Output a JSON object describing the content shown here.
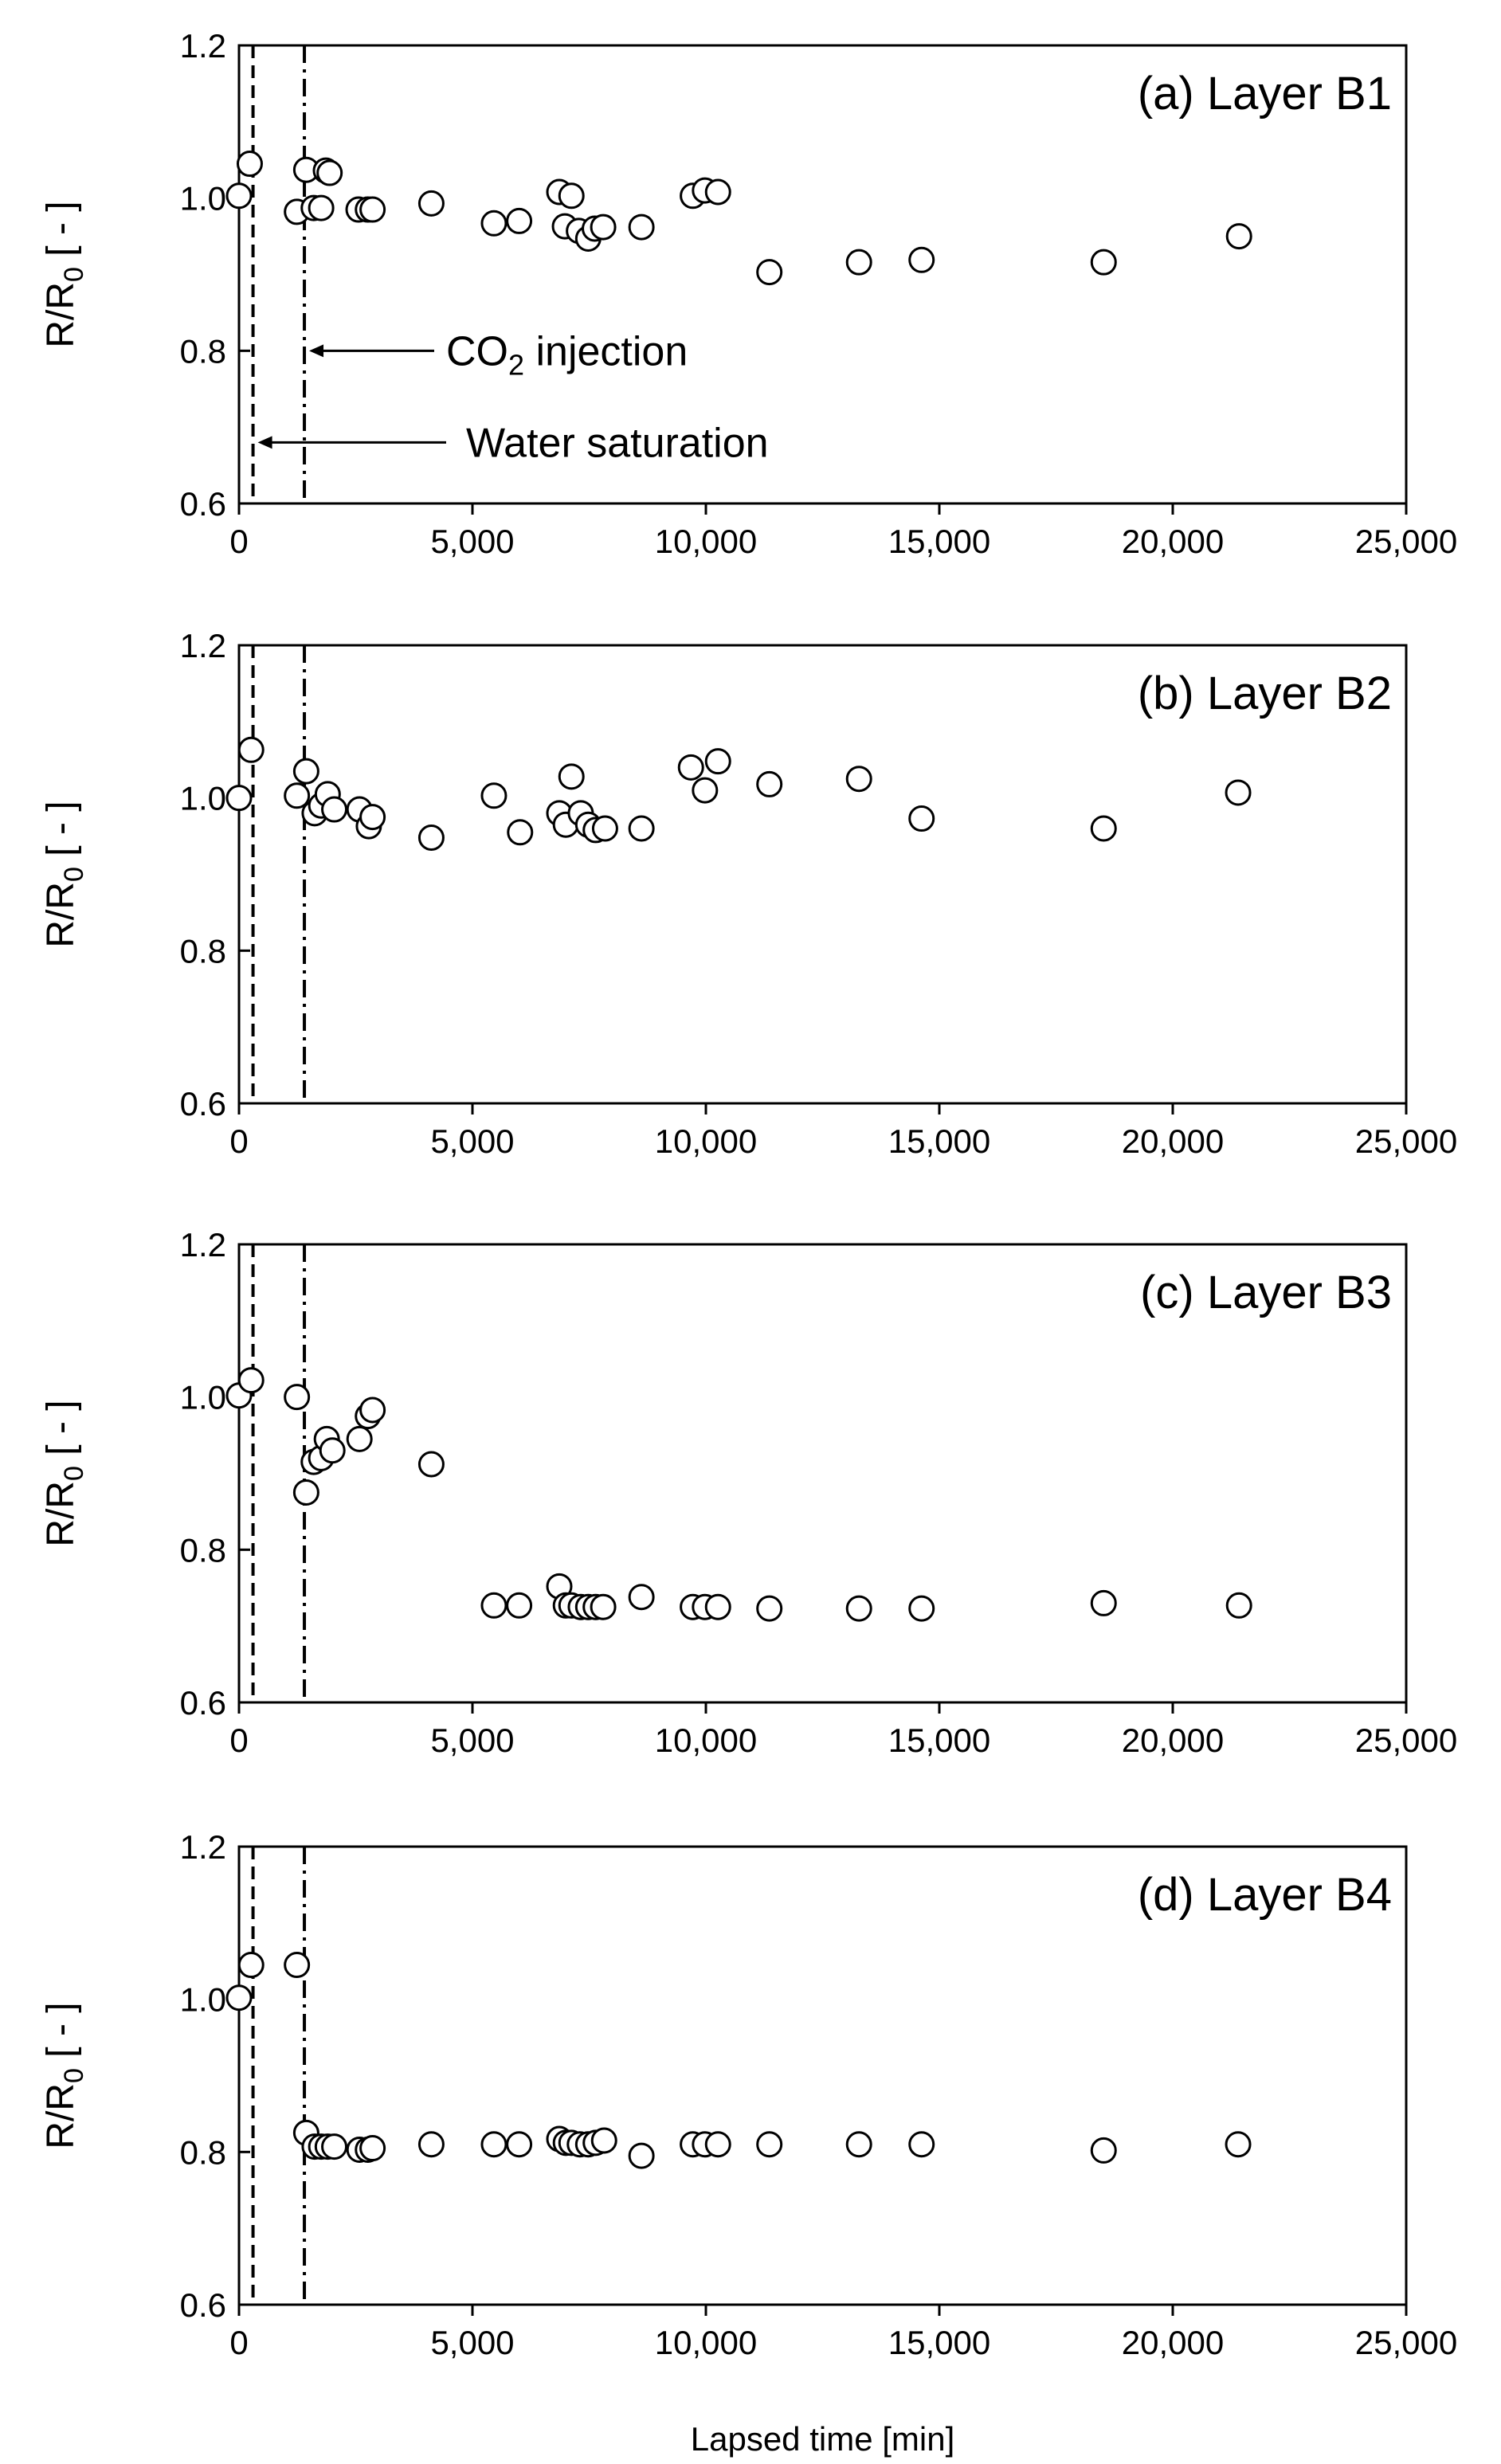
{
  "figure": {
    "xlabel": "Lapsed time [min]",
    "ylabel_main": "R/R",
    "ylabel_sub": "0",
    "ylabel_tail": " [ - ]",
    "annotations": {
      "co2_main": "CO",
      "co2_sub": "2",
      "co2_tail": " injection",
      "water": "Water saturation"
    }
  },
  "chart_data": [
    {
      "type": "scatter",
      "title": "(a) Layer B1",
      "xlabel": "",
      "ylabel": "R/R0 [ - ]",
      "xlim": [
        0,
        25000
      ],
      "ylim": [
        0.6,
        1.2
      ],
      "x_ticks": [
        "0",
        "5,000",
        "10,000",
        "15,000",
        "20,000",
        "25,000"
      ],
      "y_ticks": [
        "0.6",
        "0.8",
        "1.0",
        "1.2"
      ],
      "vlines": {
        "water_saturation": 300,
        "co2_injection": 1400
      },
      "annotations": [
        "CO2 injection",
        "Water saturation"
      ],
      "points": [
        [
          0,
          1.003
        ],
        [
          230,
          1.045
        ],
        [
          1240,
          0.982
        ],
        [
          1440,
          1.037
        ],
        [
          1600,
          0.987
        ],
        [
          1760,
          0.987
        ],
        [
          1860,
          1.036
        ],
        [
          1940,
          1.033
        ],
        [
          2560,
          0.985
        ],
        [
          2760,
          0.985
        ],
        [
          2860,
          0.985
        ],
        [
          4120,
          0.993
        ],
        [
          5460,
          0.967
        ],
        [
          6000,
          0.97
        ],
        [
          6860,
          1.008
        ],
        [
          6980,
          0.963
        ],
        [
          7120,
          1.003
        ],
        [
          7280,
          0.957
        ],
        [
          7480,
          0.947
        ],
        [
          7620,
          0.96
        ],
        [
          7800,
          0.962
        ],
        [
          8620,
          0.962
        ],
        [
          9720,
          1.003
        ],
        [
          9980,
          1.01
        ],
        [
          10260,
          1.008
        ],
        [
          11360,
          0.903
        ],
        [
          13280,
          0.916
        ],
        [
          14620,
          0.919
        ],
        [
          18520,
          0.916
        ],
        [
          21420,
          0.95
        ]
      ]
    },
    {
      "type": "scatter",
      "title": "(b) Layer B2",
      "xlabel": "",
      "ylabel": "R/R0 [ - ]",
      "xlim": [
        0,
        25000
      ],
      "ylim": [
        0.6,
        1.2
      ],
      "x_ticks": [
        "0",
        "5,000",
        "10,000",
        "15,000",
        "20,000",
        "25,000"
      ],
      "y_ticks": [
        "0.6",
        "0.8",
        "1.0",
        "1.2"
      ],
      "vlines": {
        "water_saturation": 300,
        "co2_injection": 1400
      },
      "points": [
        [
          0,
          1.0
        ],
        [
          260,
          1.063
        ],
        [
          1240,
          1.003
        ],
        [
          1440,
          1.035
        ],
        [
          1620,
          0.98
        ],
        [
          1760,
          0.99
        ],
        [
          1900,
          1.005
        ],
        [
          2040,
          0.985
        ],
        [
          2580,
          0.985
        ],
        [
          2780,
          0.963
        ],
        [
          2860,
          0.975
        ],
        [
          4120,
          0.948
        ],
        [
          5460,
          1.003
        ],
        [
          6020,
          0.955
        ],
        [
          6860,
          0.98
        ],
        [
          7000,
          0.965
        ],
        [
          7120,
          1.028
        ],
        [
          7320,
          0.98
        ],
        [
          7480,
          0.965
        ],
        [
          7640,
          0.958
        ],
        [
          7840,
          0.96
        ],
        [
          8620,
          0.96
        ],
        [
          9680,
          1.04
        ],
        [
          9980,
          1.01
        ],
        [
          10260,
          1.048
        ],
        [
          11360,
          1.018
        ],
        [
          13280,
          1.025
        ],
        [
          14620,
          0.973
        ],
        [
          18520,
          0.96
        ],
        [
          21400,
          1.007
        ]
      ]
    },
    {
      "type": "scatter",
      "title": "(c) Layer B3",
      "xlabel": "",
      "ylabel": "R/R0 [ - ]",
      "xlim": [
        0,
        25000
      ],
      "ylim": [
        0.6,
        1.2
      ],
      "x_ticks": [
        "0",
        "5,000",
        "10,000",
        "15,000",
        "20,000",
        "25,000"
      ],
      "y_ticks": [
        "0.6",
        "0.8",
        "1.0",
        "1.2"
      ],
      "vlines": {
        "water_saturation": 300,
        "co2_injection": 1400
      },
      "points": [
        [
          0,
          1.002
        ],
        [
          260,
          1.022
        ],
        [
          1240,
          1.0
        ],
        [
          1440,
          0.875
        ],
        [
          1600,
          0.915
        ],
        [
          1760,
          0.92
        ],
        [
          1880,
          0.945
        ],
        [
          2000,
          0.93
        ],
        [
          2580,
          0.945
        ],
        [
          2760,
          0.975
        ],
        [
          2860,
          0.983
        ],
        [
          4120,
          0.912
        ],
        [
          5460,
          0.727
        ],
        [
          6000,
          0.727
        ],
        [
          6860,
          0.752
        ],
        [
          7000,
          0.727
        ],
        [
          7120,
          0.727
        ],
        [
          7320,
          0.725
        ],
        [
          7480,
          0.725
        ],
        [
          7640,
          0.725
        ],
        [
          7800,
          0.725
        ],
        [
          8620,
          0.738
        ],
        [
          9720,
          0.725
        ],
        [
          9980,
          0.725
        ],
        [
          10260,
          0.725
        ],
        [
          11360,
          0.723
        ],
        [
          13280,
          0.723
        ],
        [
          14620,
          0.723
        ],
        [
          18520,
          0.73
        ],
        [
          21420,
          0.727
        ]
      ]
    },
    {
      "type": "scatter",
      "title": "(d) Layer B4",
      "xlabel": "Lapsed time [min]",
      "ylabel": "R/R0 [ - ]",
      "xlim": [
        0,
        25000
      ],
      "ylim": [
        0.6,
        1.2
      ],
      "x_ticks": [
        "0",
        "5,000",
        "10,000",
        "15,000",
        "20,000",
        "25,000"
      ],
      "y_ticks": [
        "0.6",
        "0.8",
        "1.0",
        "1.2"
      ],
      "vlines": {
        "water_saturation": 300,
        "co2_injection": 1400
      },
      "points": [
        [
          0,
          1.002
        ],
        [
          260,
          1.045
        ],
        [
          1240,
          1.045
        ],
        [
          1440,
          0.825
        ],
        [
          1620,
          0.807
        ],
        [
          1760,
          0.807
        ],
        [
          1900,
          0.807
        ],
        [
          2040,
          0.807
        ],
        [
          2580,
          0.803
        ],
        [
          2760,
          0.803
        ],
        [
          2860,
          0.805
        ],
        [
          4120,
          0.81
        ],
        [
          5460,
          0.81
        ],
        [
          6000,
          0.81
        ],
        [
          6860,
          0.817
        ],
        [
          7000,
          0.812
        ],
        [
          7120,
          0.812
        ],
        [
          7300,
          0.81
        ],
        [
          7480,
          0.81
        ],
        [
          7640,
          0.812
        ],
        [
          7820,
          0.815
        ],
        [
          8620,
          0.795
        ],
        [
          9720,
          0.81
        ],
        [
          9980,
          0.81
        ],
        [
          10260,
          0.81
        ],
        [
          11360,
          0.81
        ],
        [
          13280,
          0.81
        ],
        [
          14620,
          0.81
        ],
        [
          18520,
          0.802
        ],
        [
          21400,
          0.81
        ]
      ]
    }
  ]
}
